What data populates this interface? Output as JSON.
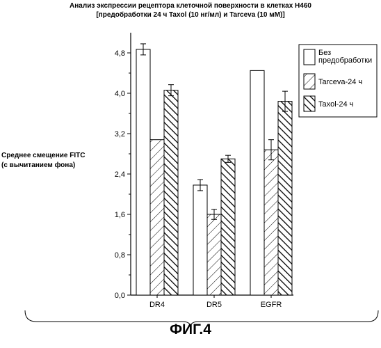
{
  "title": {
    "line1": "Анализ экспрессии рецептора клеточной поверхности в клетках H460",
    "line2": "[предобработки 24 ч Taxol (10 нг/мл) и Tarceva (10 мМ)]"
  },
  "figure_label": "ФИГ.4",
  "chart_data": {
    "type": "bar",
    "title": "Анализ экспрессии рецептора клеточной поверхности в клетках H460 [предобработки 24 ч Taxol (10 нг/мл) и Tarceva (10 мМ)]",
    "ylabel_lines": [
      "Среднее смещение FITC",
      "(с вычитанием фона)"
    ],
    "xlabel": "",
    "categories": [
      "DR4",
      "DR5",
      "EGFR"
    ],
    "ylim": [
      0.0,
      5.2
    ],
    "yticks": [
      "0,0",
      "0,8",
      "1,6",
      "2,4",
      "3,2",
      "4,0",
      "4,8"
    ],
    "ytick_values": [
      0,
      0.8,
      1.6,
      2.4,
      3.2,
      4.0,
      4.8
    ],
    "grid": false,
    "legend_position": "top-right",
    "series": [
      {
        "name": "Без предобработки",
        "name_lines": [
          "Без",
          "предобработки"
        ],
        "pattern": "none",
        "values": [
          4.87,
          2.18,
          4.45
        ],
        "errors": [
          0.11,
          0.11,
          0
        ]
      },
      {
        "name": "Tarceva-24 ч",
        "name_lines": [
          "Tarceva-24 ч"
        ],
        "pattern": "light-diagonal",
        "values": [
          3.08,
          1.6,
          2.88
        ],
        "errors": [
          0,
          0.1,
          0.2
        ]
      },
      {
        "name": "Taxol-24 ч",
        "name_lines": [
          "Taxol-24 ч"
        ],
        "pattern": "dense-diagonal",
        "values": [
          4.06,
          2.7,
          3.84
        ],
        "errors": [
          0.11,
          0.07,
          0.2
        ]
      }
    ]
  }
}
